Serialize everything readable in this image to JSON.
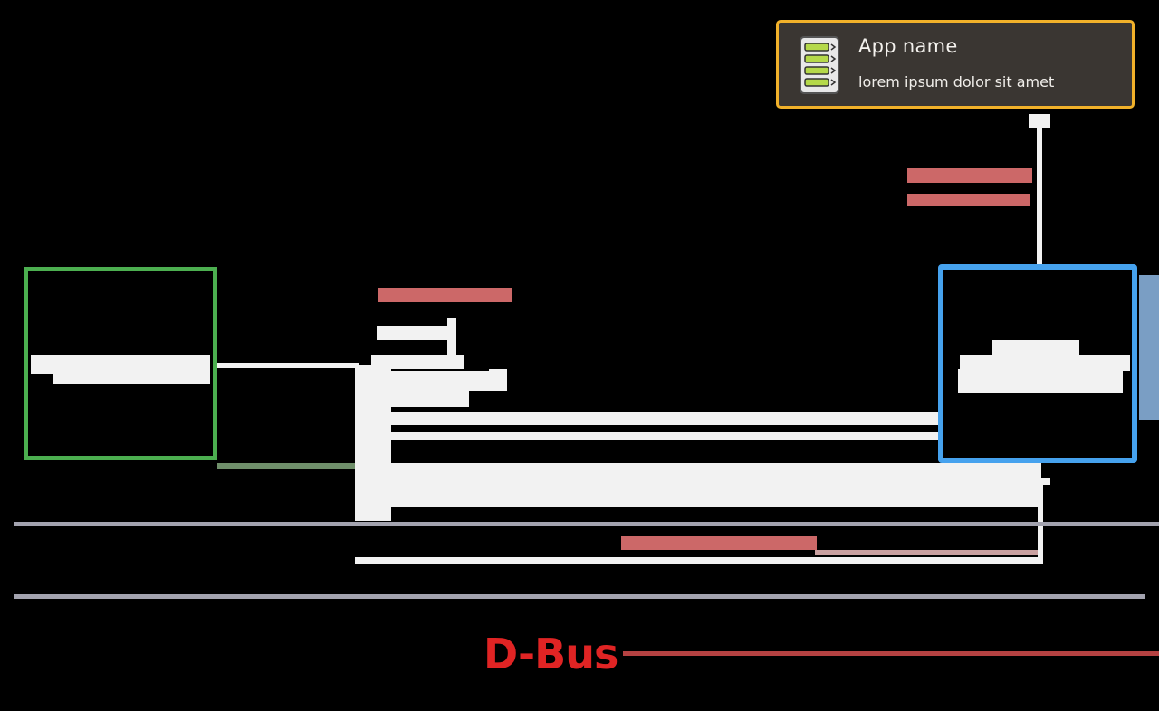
{
  "notification": {
    "app_name": "App name",
    "message": "lorem ipsum dolor sit amet",
    "icon": "list-app-icon",
    "border_color": "#f1b12a",
    "background_color": "#3a3632"
  },
  "bus": {
    "label": "D-Bus",
    "color": "#e02424"
  },
  "colors": {
    "green_box": "#4caf50",
    "blue_box": "#46a2ee",
    "label_pink": "#f08080",
    "bus_line": "#a3a3af"
  }
}
